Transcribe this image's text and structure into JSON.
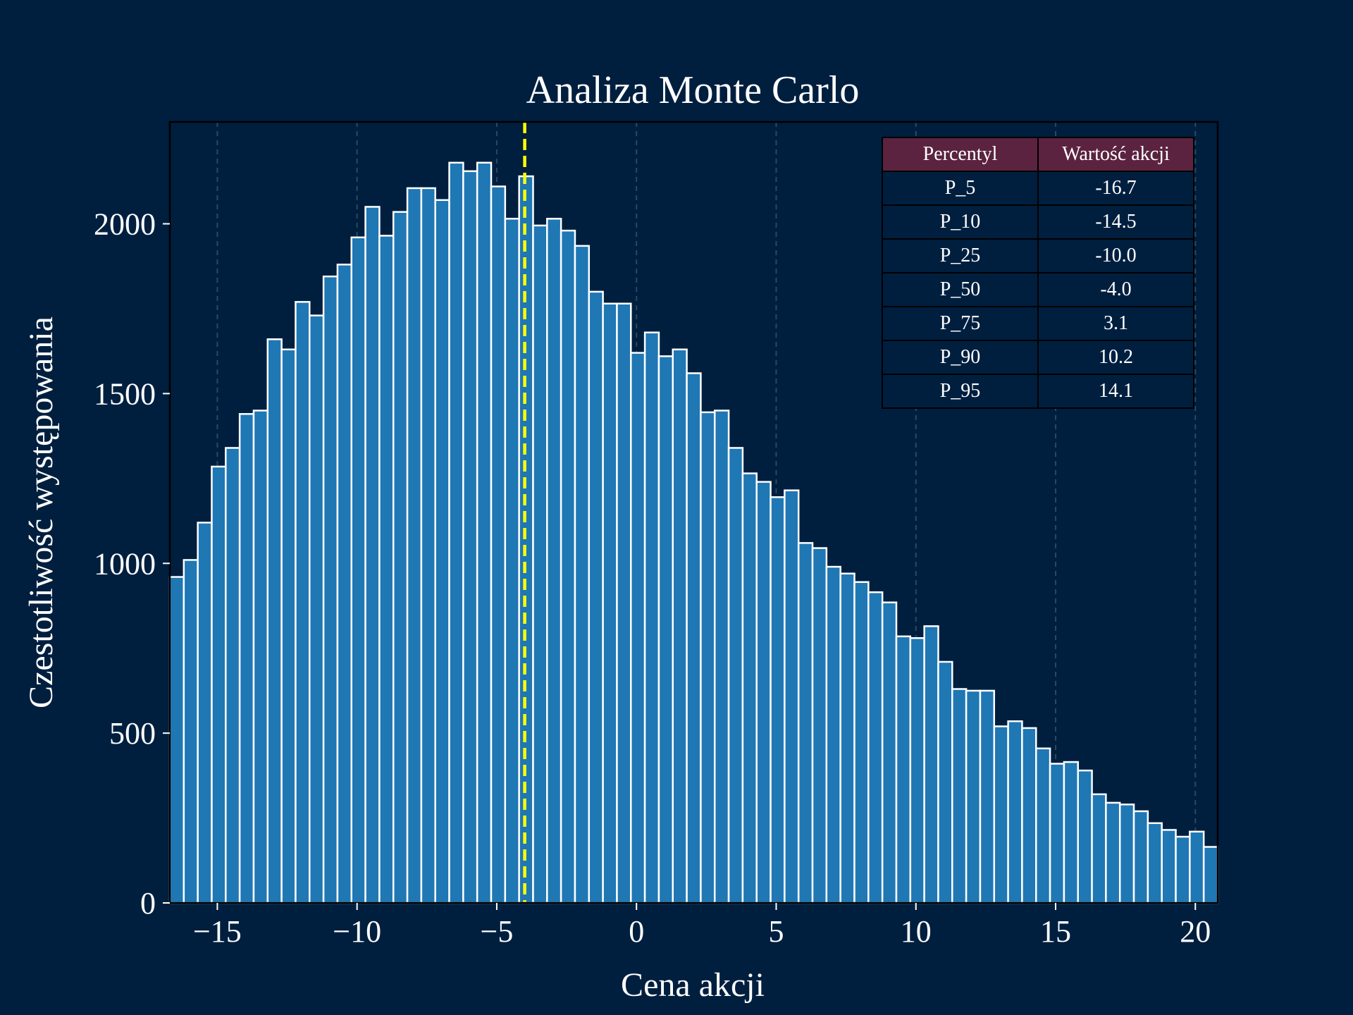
{
  "colors": {
    "background": "#001f3f",
    "bar_fill": "#1f77b4",
    "bar_edge": "#ffffff",
    "median_line": "#ffff00",
    "grid": "#2a4766",
    "table_header": "#5b2340",
    "text": "#ffffff"
  },
  "chart_data": {
    "type": "bar",
    "title": "Analiza Monte Carlo",
    "xlabel": "Cena akcji",
    "ylabel": "Czestotliwość występowania",
    "xlim": [
      -16.7,
      20.8
    ],
    "ylim": [
      0,
      2300
    ],
    "xticks": [
      -15,
      -10,
      -5,
      0,
      5,
      10,
      15,
      20
    ],
    "xtick_labels": [
      "−15",
      "−10",
      "−5",
      "0",
      "5",
      "10",
      "15",
      "20"
    ],
    "yticks": [
      0,
      500,
      1000,
      1500,
      2000
    ],
    "ytick_labels": [
      "0",
      "500",
      "1000",
      "1500",
      "2000"
    ],
    "grid": "vertical dashed",
    "bin_start": -16.7,
    "bin_width": 0.5,
    "values": [
      960,
      1010,
      1120,
      1285,
      1340,
      1440,
      1450,
      1660,
      1630,
      1770,
      1730,
      1845,
      1880,
      1960,
      2050,
      1965,
      2035,
      2105,
      2105,
      2070,
      2180,
      2155,
      2180,
      2110,
      2015,
      2140,
      1995,
      2015,
      1980,
      1935,
      1800,
      1765,
      1765,
      1620,
      1680,
      1610,
      1630,
      1560,
      1445,
      1450,
      1340,
      1265,
      1240,
      1195,
      1215,
      1060,
      1045,
      990,
      970,
      945,
      915,
      885,
      785,
      780,
      815,
      710,
      630,
      625,
      625,
      520,
      535,
      515,
      455,
      410,
      415,
      390,
      320,
      295,
      290,
      270,
      235,
      215,
      195,
      210,
      165
    ],
    "median_line_x": -4.0,
    "percentile_table": {
      "columns": [
        "Percentyl",
        "Wartość akcji"
      ],
      "rows": [
        [
          "P_5",
          "-16.7"
        ],
        [
          "P_10",
          "-14.5"
        ],
        [
          "P_25",
          "-10.0"
        ],
        [
          "P_50",
          "-4.0"
        ],
        [
          "P_75",
          "3.1"
        ],
        [
          "P_90",
          "10.2"
        ],
        [
          "P_95",
          "14.1"
        ]
      ],
      "placement": "top-right"
    }
  }
}
